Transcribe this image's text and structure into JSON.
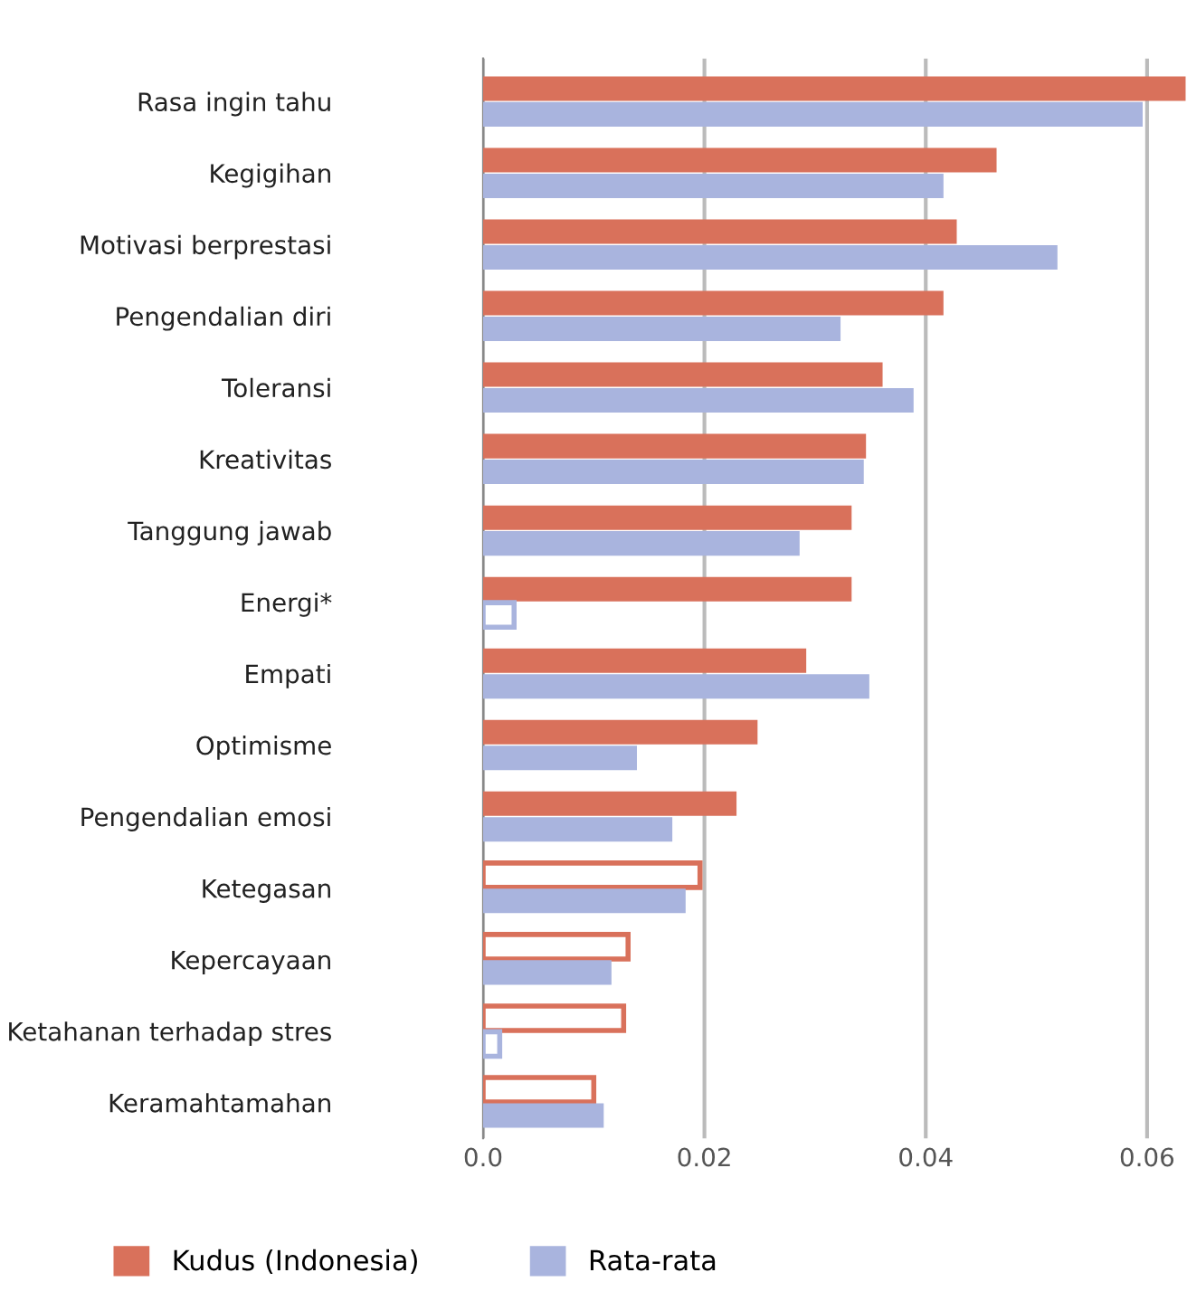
{
  "chart_data": {
    "type": "bar",
    "orientation": "horizontal",
    "categories": [
      "Rasa ingin tahu",
      "Kegigihan",
      "Motivasi berprestasi",
      "Pengendalian diri",
      "Toleransi",
      "Kreativitas",
      "Tanggung jawab",
      "Energi*",
      "Empati",
      "Optimisme",
      "Pengendalian emosi",
      "Ketegasan",
      "Kepercayaan",
      "Ketahanan terhadap stres",
      "Keramahtamahan"
    ],
    "series": [
      {
        "name": "Kudus (Indonesia)",
        "color": "#d9715b",
        "values": [
          0.0635,
          0.0464,
          0.0428,
          0.0416,
          0.0361,
          0.0346,
          0.0333,
          0.0333,
          0.0292,
          0.0248,
          0.0229,
          0.0196,
          0.0131,
          0.0127,
          0.01
        ],
        "colors": [
          "#d9715b",
          "#d9715b",
          "#d9715b",
          "#d9715b",
          "#d9715b",
          "#d9715b",
          "#d9715b",
          "#d9715b",
          "#d9715b",
          "#d9715b",
          "#d9715b",
          "#ffffff",
          "#ffffff",
          "#ffffff",
          "#ffffff"
        ]
      },
      {
        "name": "Rata-rata",
        "color": "#a9b4de",
        "values": [
          0.0596,
          0.0416,
          0.0519,
          0.0323,
          0.0389,
          0.0344,
          0.0286,
          0.0028,
          0.0349,
          0.0139,
          0.0171,
          0.0183,
          0.0116,
          0.0015,
          0.0109
        ],
        "colors": [
          "#a9b4de",
          "#a9b4de",
          "#a9b4de",
          "#a9b4de",
          "#a9b4de",
          "#a9b4de",
          "#a9b4de",
          "#ffffff",
          "#a9b4de",
          "#a9b4de",
          "#a9b4de",
          "#a9b4de",
          "#a9b4de",
          "#ffffff",
          "#a9b4de"
        ]
      }
    ],
    "xlim": [
      0,
      0.0635
    ],
    "xticks": [
      {
        "value": 0,
        "label": "0.0"
      },
      0.02,
      0.04,
      0.06
    ],
    "grid": "x",
    "legend": "bottom"
  }
}
